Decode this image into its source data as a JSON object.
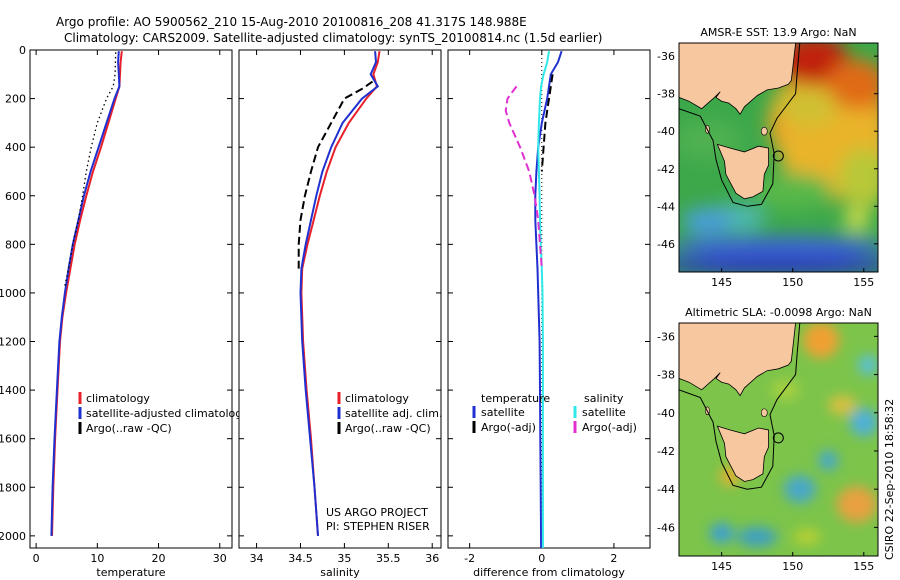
{
  "header": {
    "line1": "Argo profile: AO 5900562_210 15-Aug-2010 20100816_208 41.317S 148.988E",
    "line2": "Climatology: CARS2009. Satellite-adjusted climatology: synTS_20100814.nc (1.5d earlier)"
  },
  "side_label": "CSIRO 22-Sep-2010 18:58:32",
  "project_note": [
    "US ARGO PROJECT",
    "PI: STEPHEN RISER"
  ],
  "colors": {
    "climatology": "#e8202a",
    "satellite": "#2030d0",
    "argo": "#000000",
    "salinity_sat": "#30e8e8",
    "salinity_argo": "#e030d0",
    "land": "#f7c7a0"
  },
  "chart_data": [
    {
      "type": "line",
      "id": "temperature",
      "xlabel": "temperature",
      "xlim": [
        -1,
        32
      ],
      "xticks": [
        "0",
        "10",
        "20",
        "30"
      ],
      "ylim": [
        2050,
        0
      ],
      "yticks": [
        "0",
        "200",
        "400",
        "600",
        "800",
        "1000",
        "1200",
        "1400",
        "1600",
        "1800",
        "2000"
      ],
      "legend": [
        "climatology",
        "satellite-adjusted climatology",
        "Argo(..raw -QC)"
      ],
      "series": [
        {
          "name": "climatology",
          "style": "solid",
          "color": "#e8202a",
          "points": [
            [
              14.0,
              5
            ],
            [
              13.8,
              50
            ],
            [
              13.7,
              100
            ],
            [
              13.6,
              150
            ],
            [
              13.0,
              200
            ],
            [
              11.8,
              300
            ],
            [
              10.6,
              400
            ],
            [
              9.3,
              500
            ],
            [
              8.2,
              600
            ],
            [
              7.2,
              700
            ],
            [
              6.3,
              800
            ],
            [
              5.6,
              900
            ],
            [
              4.9,
              1000
            ],
            [
              4.3,
              1100
            ],
            [
              3.9,
              1200
            ],
            [
              3.5,
              1400
            ],
            [
              3.1,
              1600
            ],
            [
              2.8,
              1800
            ],
            [
              2.6,
              2000
            ]
          ]
        },
        {
          "name": "satellite-adjusted climatology",
          "style": "solid",
          "color": "#2030d0",
          "points": [
            [
              13.5,
              5
            ],
            [
              13.4,
              50
            ],
            [
              13.5,
              100
            ],
            [
              13.6,
              150
            ],
            [
              12.8,
              200
            ],
            [
              11.5,
              300
            ],
            [
              10.2,
              400
            ],
            [
              8.9,
              500
            ],
            [
              7.8,
              600
            ],
            [
              6.9,
              700
            ],
            [
              6.0,
              800
            ],
            [
              5.3,
              900
            ],
            [
              4.7,
              1000
            ],
            [
              4.2,
              1100
            ],
            [
              3.8,
              1200
            ],
            [
              3.4,
              1400
            ],
            [
              3.0,
              1600
            ],
            [
              2.7,
              1800
            ],
            [
              2.5,
              2000
            ]
          ]
        },
        {
          "name": "Argo(..raw -QC)",
          "style": "dotted",
          "color": "#000000",
          "points": [
            [
              13.0,
              10
            ],
            [
              12.9,
              100
            ],
            [
              12.6,
              150
            ],
            [
              11.5,
              200
            ],
            [
              10.0,
              300
            ],
            [
              9.0,
              400
            ],
            [
              8.2,
              500
            ],
            [
              7.6,
              600
            ],
            [
              6.9,
              700
            ],
            [
              6.0,
              800
            ],
            [
              5.3,
              900
            ],
            [
              4.6,
              980
            ]
          ]
        }
      ]
    },
    {
      "type": "line",
      "id": "salinity",
      "xlabel": "salinity",
      "xlim": [
        33.8,
        36.1
      ],
      "xticks": [
        "34",
        "34.5",
        "35",
        "35.5",
        "36"
      ],
      "ylim": [
        2050,
        0
      ],
      "legend": [
        "climatology",
        "satellite adj. clim.",
        "Argo(..raw -QC)"
      ],
      "series": [
        {
          "name": "climatology",
          "style": "solid",
          "color": "#e8202a",
          "points": [
            [
              35.4,
              5
            ],
            [
              35.38,
              50
            ],
            [
              35.33,
              100
            ],
            [
              35.37,
              150
            ],
            [
              35.25,
              200
            ],
            [
              35.05,
              300
            ],
            [
              34.9,
              400
            ],
            [
              34.8,
              500
            ],
            [
              34.72,
              600
            ],
            [
              34.65,
              700
            ],
            [
              34.58,
              800
            ],
            [
              34.52,
              900
            ],
            [
              34.51,
              1000
            ],
            [
              34.53,
              1200
            ],
            [
              34.57,
              1400
            ],
            [
              34.62,
              1600
            ],
            [
              34.66,
              1800
            ],
            [
              34.7,
              2000
            ]
          ]
        },
        {
          "name": "satellite adj. clim.",
          "style": "solid",
          "color": "#2030d0",
          "points": [
            [
              35.35,
              5
            ],
            [
              35.36,
              50
            ],
            [
              35.3,
              100
            ],
            [
              35.38,
              150
            ],
            [
              35.2,
              200
            ],
            [
              34.98,
              300
            ],
            [
              34.85,
              400
            ],
            [
              34.75,
              500
            ],
            [
              34.68,
              600
            ],
            [
              34.62,
              700
            ],
            [
              34.56,
              800
            ],
            [
              34.51,
              900
            ],
            [
              34.5,
              1000
            ],
            [
              34.52,
              1200
            ],
            [
              34.56,
              1400
            ],
            [
              34.61,
              1600
            ],
            [
              34.66,
              1800
            ],
            [
              34.7,
              2000
            ]
          ]
        },
        {
          "name": "Argo(..raw -QC)",
          "style": "dashed",
          "color": "#000000",
          "points": [
            [
              35.32,
              130
            ],
            [
              35.2,
              160
            ],
            [
              35.0,
              200
            ],
            [
              34.85,
              300
            ],
            [
              34.7,
              400
            ],
            [
              34.62,
              500
            ],
            [
              34.55,
              600
            ],
            [
              34.5,
              700
            ],
            [
              34.48,
              800
            ],
            [
              34.48,
              900
            ]
          ]
        }
      ]
    },
    {
      "type": "line",
      "id": "difference",
      "xlabel": "difference from climatology",
      "xlim": [
        -2.6,
        3.0
      ],
      "xticks": [
        "-2",
        "0",
        "2"
      ],
      "ylim": [
        2050,
        0
      ],
      "legend_headers": [
        "temperature",
        "salinity"
      ],
      "legend": [
        "satellite",
        "Argo(-adj)",
        "satellite",
        "Argo(-adj)"
      ],
      "series": [
        {
          "name": "temperature satellite",
          "style": "solid",
          "color": "#2030d0",
          "points": [
            [
              0.55,
              5
            ],
            [
              0.45,
              50
            ],
            [
              0.25,
              100
            ],
            [
              0.15,
              200
            ],
            [
              0.0,
              300
            ],
            [
              -0.1,
              400
            ],
            [
              -0.15,
              500
            ],
            [
              -0.18,
              600
            ],
            [
              -0.18,
              700
            ],
            [
              -0.15,
              800
            ],
            [
              -0.12,
              900
            ],
            [
              -0.1,
              1000
            ],
            [
              -0.08,
              1100
            ],
            [
              -0.06,
              1200
            ],
            [
              -0.05,
              1400
            ],
            [
              -0.04,
              1600
            ],
            [
              -0.03,
              1800
            ],
            [
              -0.02,
              2050
            ]
          ]
        },
        {
          "name": "salinity satellite",
          "style": "solid",
          "color": "#30e8e8",
          "points": [
            [
              0.2,
              5
            ],
            [
              0.15,
              50
            ],
            [
              0.05,
              100
            ],
            [
              -0.02,
              150
            ],
            [
              -0.05,
              200
            ],
            [
              -0.08,
              300
            ],
            [
              -0.1,
              400
            ],
            [
              -0.08,
              500
            ],
            [
              -0.06,
              600
            ],
            [
              -0.05,
              700
            ],
            [
              -0.03,
              800
            ],
            [
              0.0,
              900
            ],
            [
              0.02,
              1000
            ],
            [
              0.03,
              1200
            ],
            [
              0.03,
              1400
            ],
            [
              0.03,
              1600
            ],
            [
              0.03,
              1800
            ],
            [
              0.03,
              2050
            ]
          ]
        },
        {
          "name": "temperature Argo(-adj)",
          "style": "dashed",
          "color": "#000000",
          "points": [
            [
              0.3,
              100
            ],
            [
              0.2,
              200
            ],
            [
              0.1,
              300
            ],
            [
              0.05,
              400
            ],
            [
              0.0,
              500
            ]
          ]
        },
        {
          "name": "salinity Argo(-adj)",
          "style": "dashed",
          "color": "#e030d0",
          "points": [
            [
              -0.7,
              150
            ],
            [
              -0.95,
              200
            ],
            [
              -1.0,
              250
            ],
            [
              -0.9,
              300
            ],
            [
              -0.6,
              400
            ],
            [
              -0.35,
              500
            ],
            [
              -0.2,
              600
            ],
            [
              -0.1,
              700
            ],
            [
              -0.05,
              800
            ],
            [
              0.0,
              900
            ]
          ]
        }
      ]
    }
  ],
  "maps": [
    {
      "title": "AMSR-E SST: 13.9 Argo: NaN",
      "xlim": [
        142,
        156
      ],
      "ylim": [
        -47.5,
        -35.3
      ],
      "xticks": [
        "145",
        "150",
        "155"
      ],
      "yticks": [
        "-36",
        "-38",
        "-40",
        "-42",
        "-44",
        "-46"
      ],
      "type": "sst"
    },
    {
      "title": "Altimetric SLA: -0.0098 Argo: NaN",
      "xlim": [
        142,
        156
      ],
      "ylim": [
        -47.5,
        -35.3
      ],
      "xticks": [
        "145",
        "150",
        "155"
      ],
      "yticks": [
        "-36",
        "-38",
        "-40",
        "-42",
        "-44",
        "-46"
      ],
      "type": "sla"
    }
  ]
}
